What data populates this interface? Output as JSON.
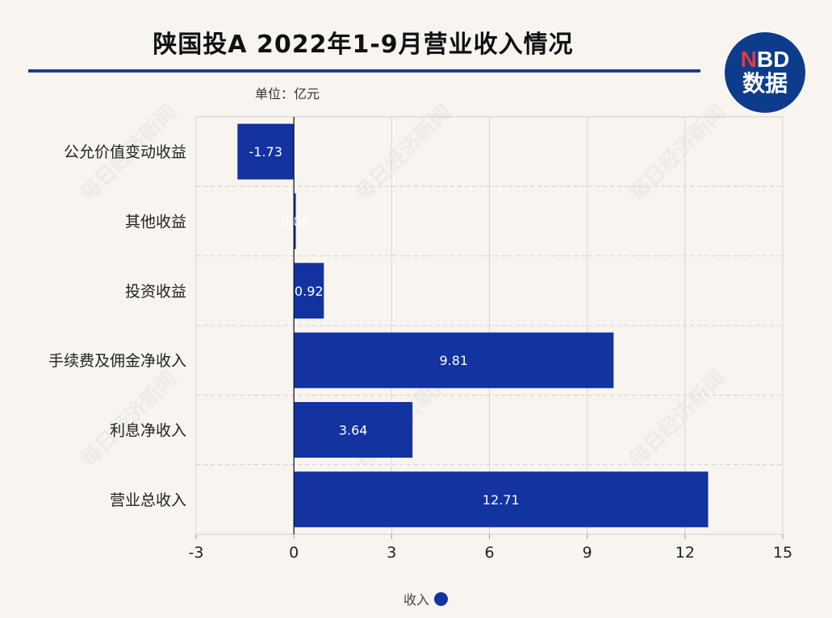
{
  "header": {
    "title": "陕国投A 2022年1-9月营业收入情况",
    "unit": "单位：亿元"
  },
  "logo": {
    "line1_n": "N",
    "line1_rest": "BD",
    "line2": "数据"
  },
  "watermark": "每日经济新闻",
  "colors": {
    "bar": "#1233a0",
    "rule": "#1b3f8f",
    "background": "#f8f5f1"
  },
  "chart_data": {
    "type": "bar",
    "orientation": "horizontal",
    "categories": [
      "公允价值变动收益",
      "其他收益",
      "投资收益",
      "手续费及佣金净收入",
      "利息净收入",
      "营业总收入"
    ],
    "series": [
      {
        "name": "收入",
        "values": [
          -1.73,
          0.06,
          0.92,
          9.81,
          3.64,
          12.71
        ],
        "labels": [
          "-1.73",
          "0.06",
          "0.92",
          "9.81",
          "3.64",
          "12.71"
        ]
      }
    ],
    "xlim": [
      -3,
      15
    ],
    "xticks": [
      -3,
      0,
      3,
      6,
      9,
      12,
      15
    ],
    "grid": true,
    "legend_position": "bottom"
  }
}
